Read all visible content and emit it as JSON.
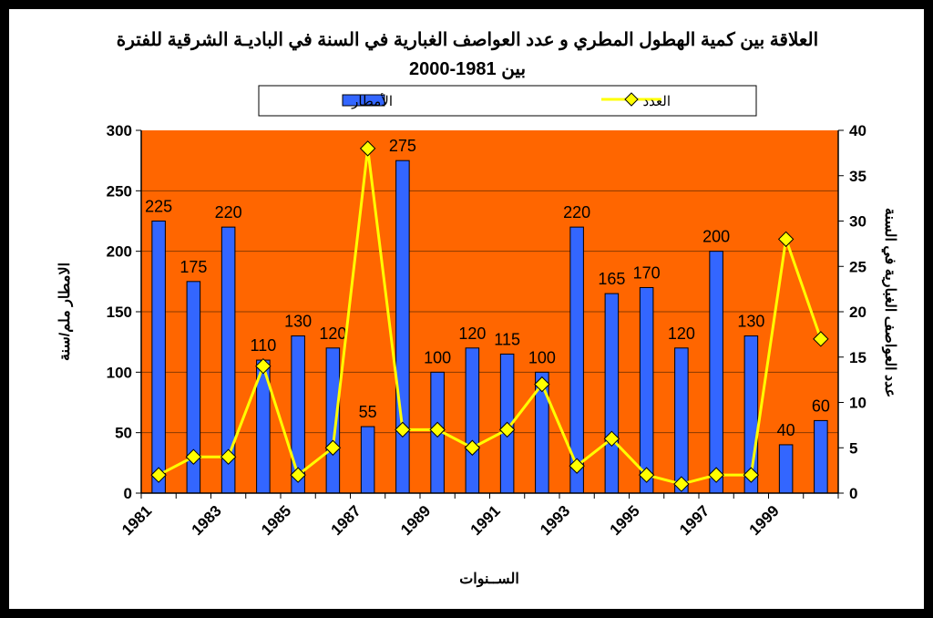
{
  "chart_data": {
    "type": "bar",
    "title_line1": "العلاقة بين كمية الهطول المطري و عدد العواصف الغبارية في السنة في الباديـة الشرقية للفترة",
    "title_line2": "بين 1981-2000",
    "xlabel": "الســنوات",
    "ylabel_left": "الامطار ملم/سنة",
    "ylabel_right": "عدد العواصف الغبارية في السنة",
    "ylim_left": [
      0,
      300
    ],
    "ylim_right": [
      0,
      40
    ],
    "yticks_left": [
      "0",
      "50",
      "100",
      "150",
      "200",
      "250",
      "300"
    ],
    "yticks_right": [
      "0",
      "5",
      "10",
      "15",
      "20",
      "25",
      "30",
      "35",
      "40"
    ],
    "categories": [
      "1981",
      "1982",
      "1983",
      "1984",
      "1985",
      "1986",
      "1987",
      "1988",
      "1989",
      "1990",
      "1991",
      "1992",
      "1993",
      "1994",
      "1995",
      "1996",
      "1997",
      "1998",
      "1999",
      "2000"
    ],
    "x_tick_labels": [
      "1981",
      "1983",
      "1985",
      "1987",
      "1989",
      "1991",
      "1993",
      "1995",
      "1997",
      "1999"
    ],
    "grid": "horizontal",
    "legend_position": "top",
    "plot_background": "#FF6600",
    "series": [
      {
        "name": "الأمطار",
        "type": "bar",
        "axis": "left",
        "color": "#3366FF",
        "values": [
          225,
          175,
          220,
          110,
          130,
          120,
          55,
          275,
          100,
          120,
          115,
          100,
          220,
          165,
          170,
          120,
          200,
          130,
          40,
          60
        ],
        "data_labels": [
          "225",
          "175",
          "220",
          "110",
          "130",
          "120",
          "55",
          "275",
          "100",
          "120",
          "115",
          "100",
          "220",
          "165",
          "170",
          "120",
          "200",
          "130",
          "40",
          "60"
        ]
      },
      {
        "name": "العدد",
        "type": "line",
        "axis": "right",
        "color": "#FFFF00",
        "marker": "diamond",
        "values": [
          2,
          4,
          4,
          14,
          2,
          5,
          38,
          7,
          7,
          5,
          7,
          12,
          3,
          6,
          2,
          1,
          2,
          2,
          28,
          17
        ]
      }
    ]
  }
}
